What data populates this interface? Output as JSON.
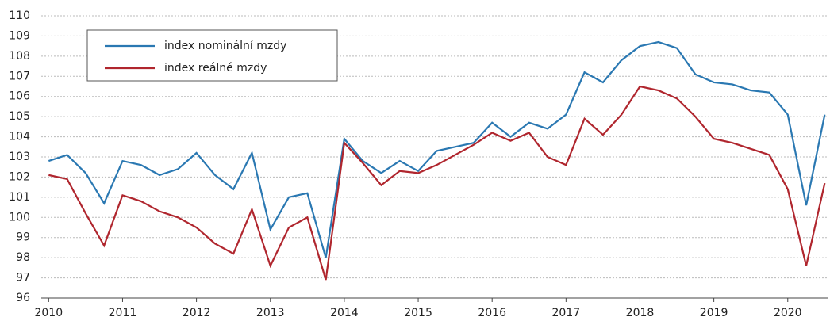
{
  "chart_data": {
    "type": "line",
    "x": [
      2010,
      2010.25,
      2010.5,
      2010.75,
      2011,
      2011.25,
      2011.5,
      2011.75,
      2012,
      2012.25,
      2012.5,
      2012.75,
      2013,
      2013.25,
      2013.5,
      2013.75,
      2014,
      2014.25,
      2014.5,
      2014.75,
      2015,
      2015.25,
      2015.5,
      2015.75,
      2016,
      2016.25,
      2016.5,
      2016.75,
      2017,
      2017.25,
      2017.5,
      2017.75,
      2018,
      2018.25,
      2018.5,
      2018.75,
      2019,
      2019.25,
      2019.5,
      2019.75,
      2020,
      2020.25,
      2020.5
    ],
    "series": [
      {
        "name": "index nominální mzdy",
        "color": "#2a78b2",
        "values": [
          102.8,
          103.1,
          102.2,
          100.7,
          102.8,
          102.6,
          102.1,
          102.4,
          103.2,
          102.1,
          101.4,
          103.2,
          99.4,
          101.0,
          101.2,
          98.0,
          103.9,
          102.8,
          102.2,
          102.8,
          102.3,
          103.3,
          103.5,
          103.7,
          104.7,
          104.0,
          104.7,
          104.4,
          105.1,
          107.2,
          106.7,
          107.8,
          108.5,
          108.7,
          108.4,
          107.1,
          106.7,
          106.6,
          106.3,
          106.2,
          105.1,
          100.6,
          105.1
        ]
      },
      {
        "name": "index reálné mzdy",
        "color": "#b0262e",
        "values": [
          102.1,
          101.9,
          100.2,
          98.6,
          101.1,
          100.8,
          100.3,
          100.0,
          99.5,
          98.7,
          98.2,
          100.4,
          97.6,
          99.5,
          100.0,
          96.9,
          103.7,
          102.7,
          101.6,
          102.3,
          102.2,
          102.6,
          103.1,
          103.6,
          104.2,
          103.8,
          104.2,
          103.0,
          102.6,
          104.9,
          104.1,
          105.1,
          106.5,
          106.3,
          105.9,
          105.0,
          103.9,
          103.7,
          103.4,
          103.1,
          101.4,
          97.6,
          101.7
        ]
      }
    ],
    "xlim": [
      2009.9,
      2020.55
    ],
    "xticks": [
      2010,
      2011,
      2012,
      2013,
      2014,
      2015,
      2016,
      2017,
      2018,
      2019,
      2020
    ],
    "ylim": [
      96,
      110
    ],
    "yticks": [
      96,
      97,
      98,
      99,
      100,
      101,
      102,
      103,
      104,
      105,
      106,
      107,
      108,
      109,
      110
    ],
    "grid": true,
    "legend": "upper left"
  }
}
